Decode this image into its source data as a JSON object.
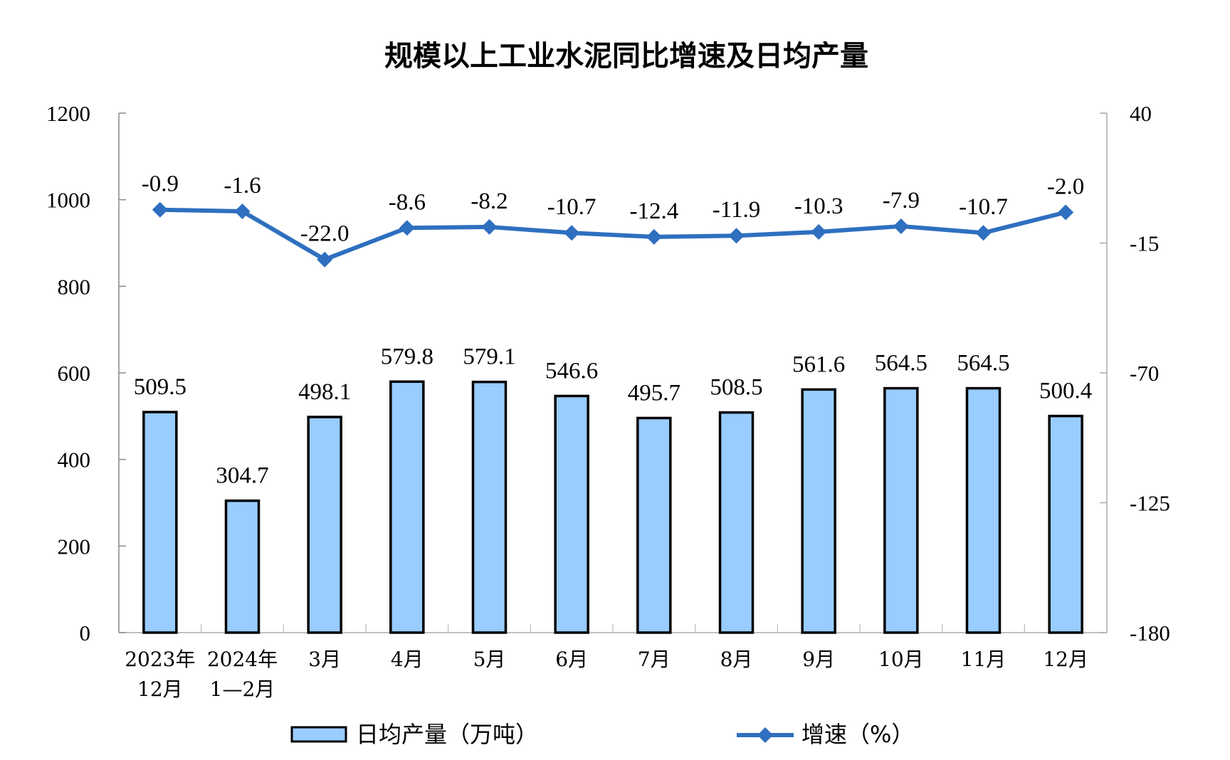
{
  "chart_data": {
    "type": "bar+line",
    "title": "规模以上工业水泥同比增速及日均产量",
    "categories": [
      [
        "2023年",
        "12月"
      ],
      [
        "2024年",
        "1—2月"
      ],
      [
        "3月"
      ],
      [
        "4月"
      ],
      [
        "5月"
      ],
      [
        "6月"
      ],
      [
        "7月"
      ],
      [
        "8月"
      ],
      [
        "9月"
      ],
      [
        "10月"
      ],
      [
        "11月"
      ],
      [
        "12月"
      ]
    ],
    "series": [
      {
        "name": "日均产量（万吨）",
        "type": "bar",
        "axis": "left",
        "color": "#99CCFF",
        "values": [
          509.5,
          304.7,
          498.1,
          579.8,
          579.1,
          546.6,
          495.7,
          508.5,
          561.6,
          564.5,
          564.5,
          500.4
        ],
        "labels": [
          "509.5",
          "304.7",
          "498.1",
          "579.8",
          "579.1",
          "546.6",
          "495.7",
          "508.5",
          "561.6",
          "564.5",
          "564.5",
          "500.4"
        ]
      },
      {
        "name": "增速（%）",
        "type": "line",
        "axis": "right",
        "color": "#2E6FBF",
        "marker": "diamond",
        "values": [
          -0.9,
          -1.6,
          -22.0,
          -8.6,
          -8.2,
          -10.7,
          -12.4,
          -11.9,
          -10.3,
          -7.9,
          -10.7,
          -2.0
        ],
        "labels": [
          "-0.9",
          "-1.6",
          "-22.0",
          "-8.6",
          "-8.2",
          "-10.7",
          "-12.4",
          "-11.9",
          "-10.3",
          "-7.9",
          "-10.7",
          "-2.0"
        ]
      }
    ],
    "y_left": {
      "lim": [
        0,
        1200
      ],
      "ticks": [
        "0",
        "200",
        "400",
        "600",
        "800",
        "1000",
        "1200"
      ]
    },
    "y_right": {
      "lim": [
        -180,
        40
      ],
      "ticks": [
        "-180",
        "-125",
        "-70",
        "-15",
        "40"
      ]
    },
    "grid": false,
    "legend": "bottom"
  }
}
